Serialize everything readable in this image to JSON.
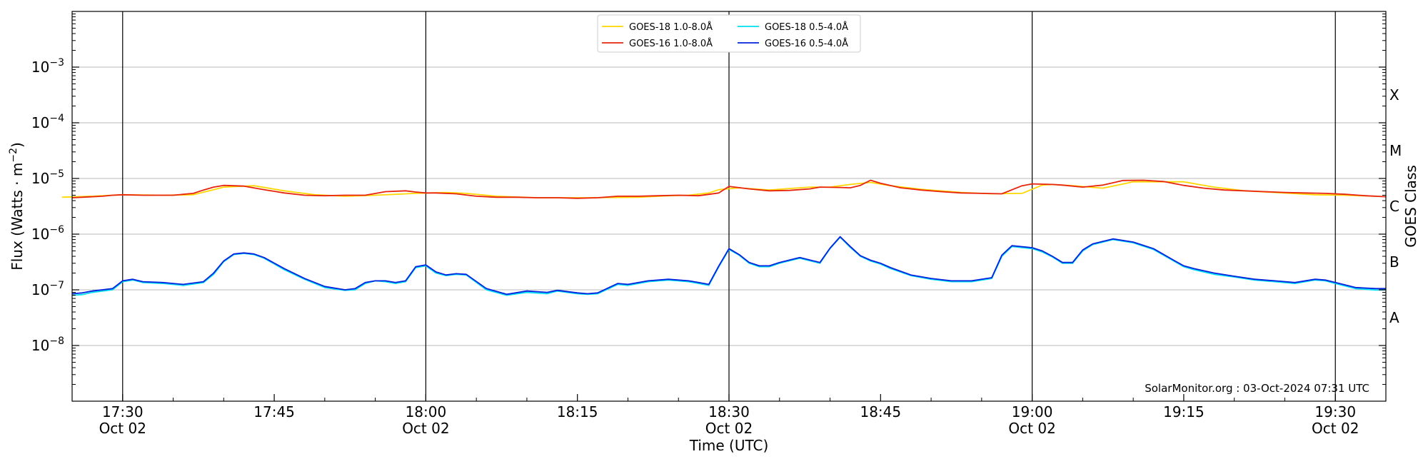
{
  "chart_data": {
    "type": "line",
    "xlabel": "Time (UTC)",
    "ylabel_main": "Flux (Watts · m",
    "ylabel_exp": "−2",
    "ylabel_close": ")",
    "ylabel_right": "GOES Class",
    "credit": "SolarMonitor.org : 03-Oct-2024 07:31 UTC",
    "x_range_minutes": [
      1045,
      1175
    ],
    "y_log_range": [
      -9,
      -2
    ],
    "grid": "horizontal",
    "legend_placement": "top-center",
    "x_ticks": [
      {
        "minute": 1050,
        "time": "17:30",
        "date": "Oct 02"
      },
      {
        "minute": 1065,
        "time": "17:45",
        "date": ""
      },
      {
        "minute": 1080,
        "time": "18:00",
        "date": "Oct 02"
      },
      {
        "minute": 1095,
        "time": "18:15",
        "date": ""
      },
      {
        "minute": 1110,
        "time": "18:30",
        "date": "Oct 02"
      },
      {
        "minute": 1125,
        "time": "18:45",
        "date": ""
      },
      {
        "minute": 1140,
        "time": "19:00",
        "date": "Oct 02"
      },
      {
        "minute": 1155,
        "time": "19:15",
        "date": ""
      },
      {
        "minute": 1170,
        "time": "19:30",
        "date": "Oct 02"
      }
    ],
    "vertical_lines_minutes": [
      1050,
      1080,
      1110,
      1140,
      1170
    ],
    "y_ticks": [
      {
        "exp": -8,
        "label": "10",
        "sup": "−8"
      },
      {
        "exp": -7,
        "label": "10",
        "sup": "−7"
      },
      {
        "exp": -6,
        "label": "10",
        "sup": "−6"
      },
      {
        "exp": -5,
        "label": "10",
        "sup": "−5"
      },
      {
        "exp": -4,
        "label": "10",
        "sup": "−4"
      },
      {
        "exp": -3,
        "label": "10",
        "sup": "−3"
      }
    ],
    "goes_classes": [
      {
        "label": "A",
        "exp": -7.5
      },
      {
        "label": "B",
        "exp": -6.5
      },
      {
        "label": "C",
        "exp": -5.5
      },
      {
        "label": "M",
        "exp": -4.5
      },
      {
        "label": "X",
        "exp": -3.5
      }
    ],
    "series": [
      {
        "name": "GOES-18 1.0-8.0Å",
        "color": "#ffd700",
        "x": [
          1044,
          1047,
          1050,
          1054,
          1057,
          1059,
          1060,
          1063,
          1066,
          1069,
          1072,
          1075,
          1079,
          1082,
          1084,
          1087,
          1091,
          1096,
          1101,
          1104,
          1106,
          1108,
          1109,
          1111,
          1114,
          1116,
          1118,
          1120,
          1122,
          1124,
          1126,
          1129,
          1133,
          1136,
          1139,
          1141,
          1142,
          1144,
          1147,
          1150,
          1155,
          1158,
          1161,
          1164,
          1168,
          1171,
          1174
        ],
        "y": [
          4.6e-06,
          4.8e-06,
          5.1e-06,
          5e-06,
          5.1e-06,
          6.3e-06,
          7e-06,
          7.4e-06,
          6e-06,
          5.1e-06,
          4.8e-06,
          5e-06,
          5.4e-06,
          5.6e-06,
          5.4e-06,
          4.8e-06,
          4.5e-06,
          4.5e-06,
          4.6e-06,
          4.9e-06,
          5e-06,
          5.5e-06,
          6.3e-06,
          6.8e-06,
          6.2e-06,
          6.6e-06,
          7e-06,
          7e-06,
          7.8e-06,
          8.5e-06,
          7.4e-06,
          6.4e-06,
          5.6e-06,
          5.3e-06,
          5.4e-06,
          7.6e-06,
          7.8e-06,
          7.4e-06,
          6.7e-06,
          8.7e-06,
          8.7e-06,
          7e-06,
          6e-06,
          5.6e-06,
          5.1e-06,
          5e-06,
          4.8e-06
        ]
      },
      {
        "name": "GOES-16 1.0-8.0Å",
        "color": "#e8240c",
        "x": [
          1045,
          1048,
          1049,
          1050,
          1052,
          1055,
          1057,
          1058,
          1059,
          1060,
          1062,
          1064,
          1066,
          1068,
          1070,
          1072,
          1074,
          1076,
          1078,
          1079,
          1080,
          1081,
          1083,
          1085,
          1087,
          1089,
          1091,
          1093,
          1095,
          1097,
          1099,
          1101,
          1103,
          1105,
          1107,
          1109,
          1110,
          1112,
          1114,
          1116,
          1118,
          1119,
          1121,
          1122,
          1123,
          1124,
          1125,
          1127,
          1129,
          1131,
          1133,
          1135,
          1137,
          1139,
          1140,
          1142,
          1143,
          1145,
          1147,
          1149,
          1151,
          1153,
          1155,
          1157,
          1159,
          1161,
          1163,
          1165,
          1167,
          1169,
          1171,
          1173,
          1175
        ],
        "y": [
          4.5e-06,
          4.8e-06,
          5e-06,
          5.1e-06,
          5e-06,
          5e-06,
          5.4e-06,
          6.2e-06,
          7e-06,
          7.5e-06,
          7.3e-06,
          6.3e-06,
          5.5e-06,
          5e-06,
          4.9e-06,
          5e-06,
          5e-06,
          5.8e-06,
          6e-06,
          5.7e-06,
          5.5e-06,
          5.5e-06,
          5.3e-06,
          4.8e-06,
          4.6e-06,
          4.6e-06,
          4.5e-06,
          4.5e-06,
          4.4e-06,
          4.5e-06,
          4.8e-06,
          4.8e-06,
          4.9e-06,
          5e-06,
          4.9e-06,
          5.5e-06,
          7.2e-06,
          6.5e-06,
          6e-06,
          6.1e-06,
          6.5e-06,
          7e-06,
          6.9e-06,
          6.8e-06,
          7.5e-06,
          9.3e-06,
          8.2e-06,
          6.8e-06,
          6.2e-06,
          5.8e-06,
          5.5e-06,
          5.4e-06,
          5.3e-06,
          7.4e-06,
          8e-06,
          7.8e-06,
          7.6e-06,
          7e-06,
          7.6e-06,
          9.2e-06,
          9.3e-06,
          8.8e-06,
          7.5e-06,
          6.7e-06,
          6.2e-06,
          6e-06,
          5.8e-06,
          5.6e-06,
          5.5e-06,
          5.4e-06,
          5.2e-06,
          4.9e-06,
          4.7e-06
        ]
      },
      {
        "name": "GOES-18 0.5-4.0Å",
        "color": "#00e0f0",
        "x": [
          1045,
          1046,
          1047,
          1049,
          1050,
          1051,
          1052,
          1054,
          1055,
          1056,
          1058,
          1059,
          1060,
          1061,
          1062,
          1063,
          1064,
          1066,
          1068,
          1070,
          1072,
          1073,
          1074,
          1075,
          1076,
          1077,
          1078,
          1079,
          1080,
          1081,
          1082,
          1083,
          1084,
          1086,
          1088,
          1090,
          1092,
          1093,
          1095,
          1096,
          1097,
          1099,
          1100,
          1102,
          1104,
          1106,
          1107,
          1108,
          1109,
          1110,
          1111,
          1112,
          1113,
          1114,
          1115,
          1117,
          1119,
          1120,
          1121,
          1122,
          1123,
          1124,
          1125,
          1126,
          1128,
          1130,
          1132,
          1134,
          1136,
          1137,
          1138,
          1140,
          1141,
          1142,
          1143,
          1144,
          1145,
          1146,
          1148,
          1150,
          1152,
          1154,
          1155,
          1156,
          1158,
          1160,
          1162,
          1164,
          1166,
          1168,
          1169,
          1170,
          1172,
          1174,
          1175
        ],
        "y": [
          8e-08,
          8.2e-08,
          9e-08,
          1e-07,
          1.4e-07,
          1.5e-07,
          1.35e-07,
          1.3e-07,
          1.25e-07,
          1.2e-07,
          1.35e-07,
          1.9e-07,
          3.2e-07,
          4.3e-07,
          4.5e-07,
          4.3e-07,
          3.7e-07,
          2.3e-07,
          1.55e-07,
          1.1e-07,
          9.8e-08,
          1e-07,
          1.3e-07,
          1.45e-07,
          1.4e-07,
          1.3e-07,
          1.4e-07,
          2.5e-07,
          2.7e-07,
          2e-07,
          1.8e-07,
          1.9e-07,
          1.85e-07,
          1e-07,
          8e-08,
          9e-08,
          8.5e-08,
          9.5e-08,
          8.5e-08,
          8.3e-08,
          8.5e-08,
          1.25e-07,
          1.2e-07,
          1.4e-07,
          1.5e-07,
          1.4e-07,
          1.3e-07,
          1.2e-07,
          2.6e-07,
          5.3e-07,
          4.2e-07,
          3e-07,
          2.6e-07,
          2.6e-07,
          3e-07,
          3.7e-07,
          3e-07,
          5.5e-07,
          8.8e-07,
          5.8e-07,
          4e-07,
          3.3e-07,
          2.9e-07,
          2.4e-07,
          1.8e-07,
          1.55e-07,
          1.4e-07,
          1.4e-07,
          1.6e-07,
          4e-07,
          6e-07,
          5.5e-07,
          4.8e-07,
          3.9e-07,
          3e-07,
          3e-07,
          5e-07,
          6.5e-07,
          8e-07,
          7e-07,
          5.3e-07,
          3.3e-07,
          2.6e-07,
          2.3e-07,
          1.9e-07,
          1.7e-07,
          1.5e-07,
          1.4e-07,
          1.3e-07,
          1.5e-07,
          1.45e-07,
          1.3e-07,
          1.05e-07,
          9.9e-08,
          1e-07
        ]
      },
      {
        "name": "GOES-16 0.5-4.0Å",
        "color": "#0022e0",
        "x": [
          1045,
          1046,
          1047,
          1049,
          1050,
          1051,
          1052,
          1054,
          1055,
          1056,
          1058,
          1059,
          1060,
          1061,
          1062,
          1063,
          1064,
          1066,
          1068,
          1070,
          1072,
          1073,
          1074,
          1075,
          1076,
          1077,
          1078,
          1079,
          1080,
          1081,
          1082,
          1083,
          1084,
          1086,
          1088,
          1090,
          1092,
          1093,
          1095,
          1096,
          1097,
          1099,
          1100,
          1102,
          1104,
          1106,
          1107,
          1108,
          1109,
          1110,
          1111,
          1112,
          1113,
          1114,
          1115,
          1117,
          1119,
          1120,
          1121,
          1122,
          1123,
          1124,
          1125,
          1126,
          1128,
          1130,
          1132,
          1134,
          1136,
          1137,
          1138,
          1140,
          1141,
          1142,
          1143,
          1144,
          1145,
          1146,
          1148,
          1150,
          1152,
          1154,
          1155,
          1156,
          1158,
          1160,
          1162,
          1164,
          1166,
          1168,
          1169,
          1170,
          1172,
          1174,
          1175
        ],
        "y": [
          8.5e-08,
          8.8e-08,
          9.5e-08,
          1.05e-07,
          1.45e-07,
          1.55e-07,
          1.4e-07,
          1.35e-07,
          1.3e-07,
          1.25e-07,
          1.4e-07,
          2e-07,
          3.3e-07,
          4.4e-07,
          4.6e-07,
          4.4e-07,
          3.8e-07,
          2.4e-07,
          1.6e-07,
          1.15e-07,
          1e-07,
          1.05e-07,
          1.35e-07,
          1.45e-07,
          1.45e-07,
          1.35e-07,
          1.45e-07,
          2.6e-07,
          2.8e-07,
          2.1e-07,
          1.85e-07,
          1.95e-07,
          1.9e-07,
          1.05e-07,
          8.3e-08,
          9.5e-08,
          9e-08,
          9.8e-08,
          8.8e-08,
          8.5e-08,
          8.8e-08,
          1.3e-07,
          1.25e-07,
          1.45e-07,
          1.55e-07,
          1.45e-07,
          1.35e-07,
          1.25e-07,
          2.7e-07,
          5.5e-07,
          4.3e-07,
          3.1e-07,
          2.7e-07,
          2.7e-07,
          3.1e-07,
          3.8e-07,
          3.1e-07,
          5.6e-07,
          9e-07,
          6e-07,
          4.1e-07,
          3.4e-07,
          3e-07,
          2.5e-07,
          1.85e-07,
          1.6e-07,
          1.45e-07,
          1.45e-07,
          1.65e-07,
          4.2e-07,
          6.2e-07,
          5.7e-07,
          5e-07,
          4e-07,
          3.1e-07,
          3.1e-07,
          5.2e-07,
          6.7e-07,
          8.2e-07,
          7.2e-07,
          5.5e-07,
          3.4e-07,
          2.7e-07,
          2.4e-07,
          2e-07,
          1.75e-07,
          1.55e-07,
          1.45e-07,
          1.35e-07,
          1.55e-07,
          1.5e-07,
          1.35e-07,
          1.1e-07,
          1.05e-07,
          1.05e-07
        ]
      }
    ]
  }
}
